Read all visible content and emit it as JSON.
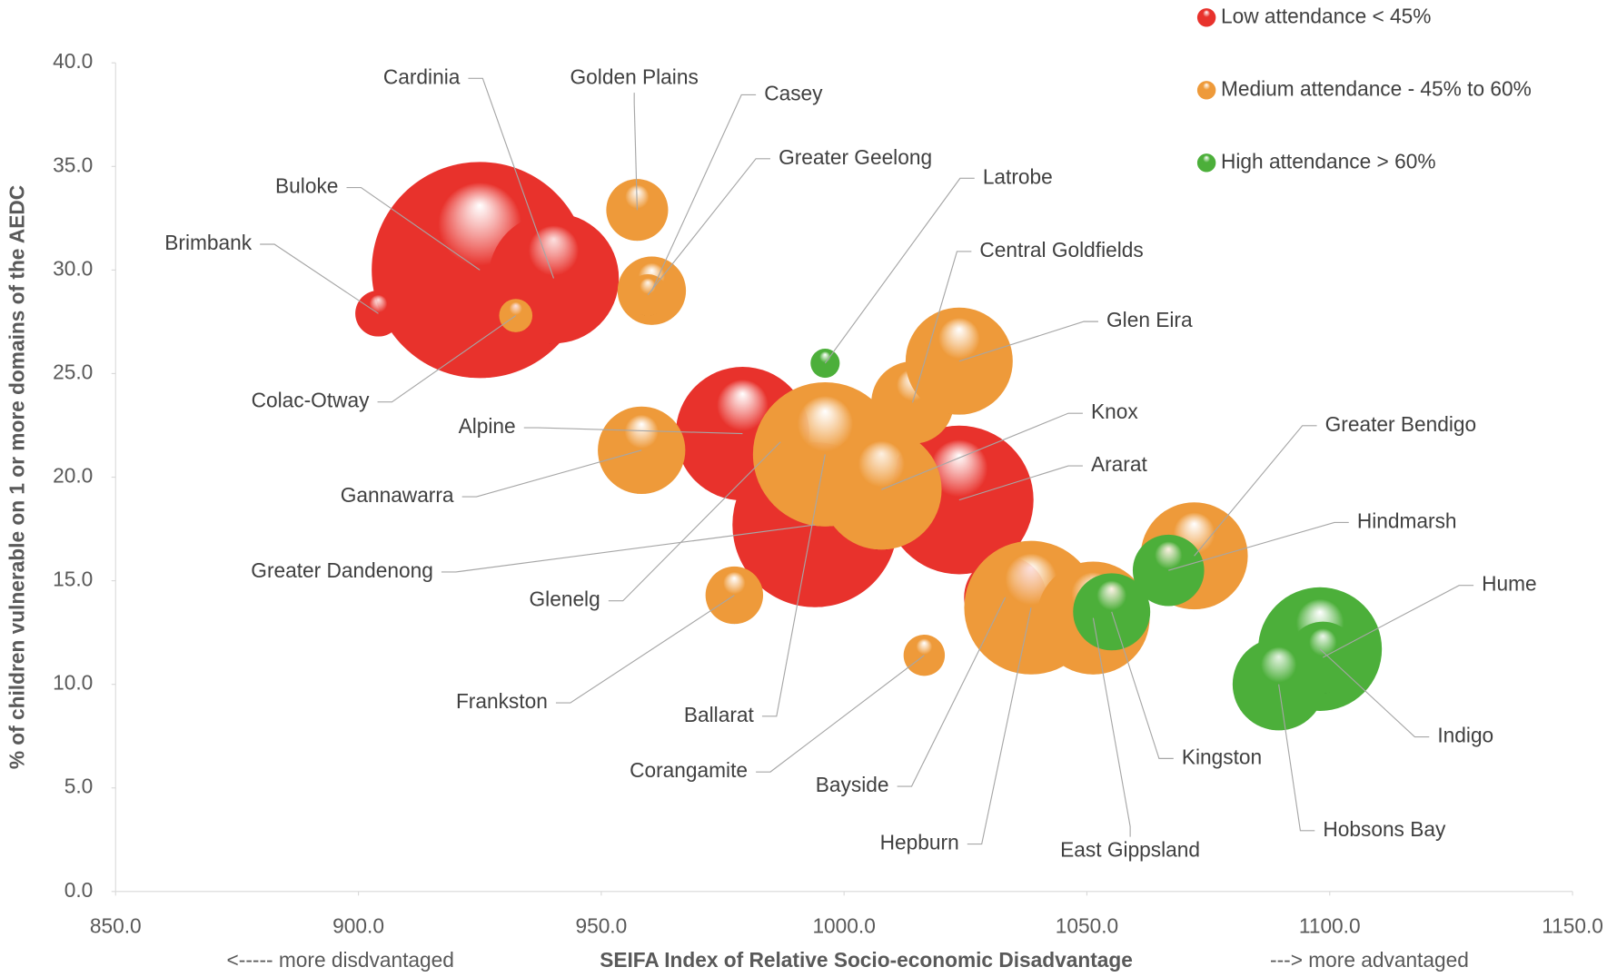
{
  "chart_data": {
    "type": "bubble",
    "xlabel": "SEIFA Index of Relative Socio-economic Disadvantage",
    "ylabel": "% of children vulnerable on 1 or more domains of the AEDC",
    "annotations": [
      "<----- more disdvantaged",
      "---> more advantaged"
    ],
    "xlim": [
      850,
      1150
    ],
    "xticks": [
      {
        "value": 850,
        "label": "850.0"
      },
      {
        "value": 900,
        "label": "900.0"
      },
      {
        "value": 950,
        "label": "950.0"
      },
      {
        "value": 1000,
        "label": "1000.0"
      },
      {
        "value": 1050,
        "label": "1050.0"
      },
      {
        "value": 1100,
        "label": "1100.0"
      },
      {
        "value": 1150,
        "label": "1150.0"
      }
    ],
    "ylim": [
      0,
      40
    ],
    "yticks": [
      {
        "value": 0,
        "label": "0.0"
      },
      {
        "value": 5,
        "label": "5.0"
      },
      {
        "value": 10,
        "label": "10.0"
      },
      {
        "value": 15,
        "label": "15.0"
      },
      {
        "value": 20,
        "label": "20.0"
      },
      {
        "value": 25,
        "label": "25.0"
      },
      {
        "value": 30,
        "label": "30.0"
      },
      {
        "value": 35,
        "label": "35.0"
      },
      {
        "value": 40,
        "label": "40.0"
      }
    ],
    "legend": "top-right",
    "series": [
      {
        "name": "Low attendance < 45%",
        "color": "#e8322c",
        "labels": [
          "Buloke",
          "Cardinia",
          "Brimbank",
          "Ararat",
          "Alpine",
          "Greater Dandenong",
          "Bayside"
        ],
        "x": [
          925.0,
          940.2,
          904.1,
          1023.7,
          979.1,
          994.0,
          1033.2
        ],
        "values": [
          30.0,
          29.6,
          27.9,
          18.9,
          22.1,
          17.7,
          14.2
        ],
        "sizes": [
          110,
          40,
          5,
          52,
          42,
          64,
          16
        ]
      },
      {
        "name": "Medium attendance - 45% to 60%",
        "color": "#ee9a3a",
        "labels": [
          "Golden Plains",
          "Casey",
          "Greater Geelong",
          "Colac-Otway",
          "Central Goldfields",
          "Glen Eira",
          "Gannawarra",
          "Glenelg",
          "Ballarat",
          "Knox",
          "Frankston",
          "Corangamite",
          "Hepburn",
          "East Gippsland",
          "Greater Bendigo"
        ],
        "x": [
          957.4,
          960.4,
          959.6,
          932.4,
          1014.1,
          1023.7,
          958.3,
          986.9,
          996.1,
          1007.7,
          977.4,
          1016.5,
          1038.5,
          1051.3,
          1072.1
        ],
        "values": [
          32.9,
          29.0,
          28.8,
          27.8,
          23.6,
          25.6,
          21.3,
          21.7,
          21.1,
          19.4,
          14.3,
          11.4,
          13.7,
          13.2,
          16.2
        ],
        "sizes": [
          9,
          11,
          4,
          2.6,
          16,
          27,
          18,
          5.8,
          49,
          34,
          7.8,
          4,
          42,
          30,
          27
        ]
      },
      {
        "name": "High attendance > 60%",
        "color": "#4caf3a",
        "labels": [
          "Latrobe",
          "Hindmarsh",
          "Kingston",
          "Indigo",
          "Hume",
          "Hobsons Bay"
        ],
        "x": [
          996.1,
          1066.8,
          1055.1,
          1098.0,
          1098.6,
          1089.5
        ],
        "values": [
          25.5,
          15.5,
          13.5,
          11.7,
          11.3,
          10.0
        ],
        "sizes": [
          2,
          12,
          14,
          36,
          12,
          20
        ]
      }
    ]
  }
}
